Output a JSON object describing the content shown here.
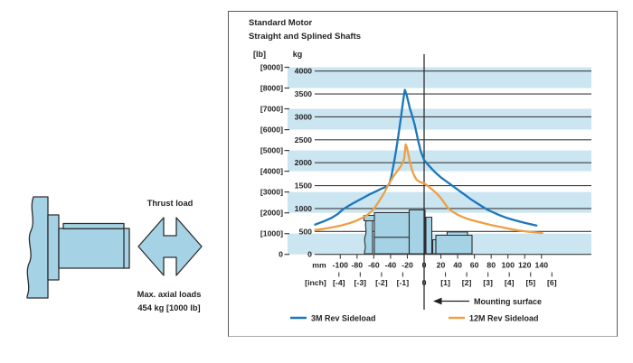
{
  "panel": {
    "title_line1": "Standard Motor",
    "title_line2": "Straight and Splined Shafts"
  },
  "illustration": {
    "thrust_label": "Thrust load",
    "axial_loads_line1": "Max. axial loads",
    "axial_loads_line2": "454 kg [1000 lb]"
  },
  "colors": {
    "stripe": "#cbe5f1",
    "fill_blue": "#a5d3e5",
    "outline": "#2d2e30",
    "grid": "#3e3f41",
    "text": "#231f20",
    "curve_3m": "#1b77bc",
    "curve_12m": "#eda045",
    "panel_border": "#58595b"
  },
  "chart_data": {
    "type": "line",
    "title": "Standard Motor - Straight and Splined Shafts",
    "x_axis": {
      "unit_primary": "mm",
      "unit_secondary": "[inch]",
      "mm_ticks": [
        -100,
        -80,
        -60,
        -40,
        -20,
        0,
        20,
        40,
        60,
        80,
        100,
        120,
        140
      ],
      "inch_ticks": [
        -4,
        -3,
        -2,
        -1,
        0,
        1,
        2,
        3,
        4,
        5,
        6
      ],
      "mm_range": [
        -130,
        141
      ]
    },
    "y_axis": {
      "unit_primary": "kg",
      "unit_secondary": "[lb]",
      "kg_ticks": [
        0,
        500,
        1000,
        1500,
        2000,
        2500,
        3000,
        3500,
        4000
      ],
      "lb_ticks": [
        0,
        1000,
        2000,
        3000,
        4000,
        5000,
        6000,
        7000,
        8000,
        9000
      ],
      "shaded_lb_bands": [
        [
          0,
          1000
        ],
        [
          2000,
          3000
        ],
        [
          4000,
          5000
        ],
        [
          6000,
          7000
        ],
        [
          8000,
          9000
        ]
      ],
      "kg_range": [
        0,
        4200
      ],
      "grid": true
    },
    "annotations": {
      "mounting_surface": "Mounting surface"
    },
    "legend": [
      {
        "label": "3M Rev Sideload",
        "color": "#1b77bc"
      },
      {
        "label": "12M Rev Sideload",
        "color": "#eda045"
      }
    ],
    "series": [
      {
        "name": "3M Rev Sideload",
        "color_key": "curve_3m",
        "points_mm_kg": [
          [
            -130,
            650
          ],
          [
            -120,
            720
          ],
          [
            -111,
            790
          ],
          [
            -103,
            880
          ],
          [
            -97,
            980
          ],
          [
            -90,
            1060
          ],
          [
            -82,
            1140
          ],
          [
            -74,
            1220
          ],
          [
            -66,
            1300
          ],
          [
            -58,
            1370
          ],
          [
            -51,
            1430
          ],
          [
            -46,
            1470
          ],
          [
            -42,
            1520
          ],
          [
            -39,
            1700
          ],
          [
            -37,
            1900
          ],
          [
            -35,
            2100
          ],
          [
            -33,
            2320
          ],
          [
            -31,
            2560
          ],
          [
            -29,
            2810
          ],
          [
            -27,
            3080
          ],
          [
            -25,
            3350
          ],
          [
            -23,
            3590
          ],
          [
            -21,
            3490
          ],
          [
            -19,
            3340
          ],
          [
            -17,
            3190
          ],
          [
            -15,
            3070
          ],
          [
            -13,
            2950
          ],
          [
            -11,
            2810
          ],
          [
            -9,
            2640
          ],
          [
            -7,
            2470
          ],
          [
            -4,
            2250
          ],
          [
            0,
            2060
          ],
          [
            5,
            1950
          ],
          [
            10,
            1850
          ],
          [
            15,
            1760
          ],
          [
            20,
            1680
          ],
          [
            26,
            1600
          ],
          [
            32,
            1520
          ],
          [
            38,
            1440
          ],
          [
            44,
            1360
          ],
          [
            50,
            1280
          ],
          [
            56,
            1200
          ],
          [
            62,
            1130
          ],
          [
            68,
            1060
          ],
          [
            75,
            980
          ],
          [
            82,
            920
          ],
          [
            90,
            855
          ],
          [
            98,
            800
          ],
          [
            106,
            755
          ],
          [
            114,
            715
          ],
          [
            122,
            680
          ],
          [
            128,
            655
          ],
          [
            134,
            630
          ]
        ]
      },
      {
        "name": "12M Rev Sideload",
        "color_key": "curve_12m",
        "points_mm_kg": [
          [
            -130,
            530
          ],
          [
            -119,
            560
          ],
          [
            -108,
            595
          ],
          [
            -98,
            635
          ],
          [
            -89,
            680
          ],
          [
            -81,
            735
          ],
          [
            -74,
            795
          ],
          [
            -67,
            870
          ],
          [
            -62,
            950
          ],
          [
            -58,
            1040
          ],
          [
            -54,
            1150
          ],
          [
            -50,
            1270
          ],
          [
            -46,
            1400
          ],
          [
            -43,
            1510
          ],
          [
            -40,
            1600
          ],
          [
            -37,
            1690
          ],
          [
            -34,
            1770
          ],
          [
            -31,
            1845
          ],
          [
            -28,
            1915
          ],
          [
            -25,
            2010
          ],
          [
            -23.5,
            2120
          ],
          [
            -22,
            2400
          ],
          [
            -20.5,
            2330
          ],
          [
            -19,
            2200
          ],
          [
            -17,
            2030
          ],
          [
            -15,
            1880
          ],
          [
            -13,
            1770
          ],
          [
            -11,
            1690
          ],
          [
            -9,
            1630
          ],
          [
            -6,
            1590
          ],
          [
            -3,
            1565
          ],
          [
            0,
            1550
          ],
          [
            4,
            1500
          ],
          [
            8,
            1440
          ],
          [
            12,
            1380
          ],
          [
            16,
            1310
          ],
          [
            20,
            1230
          ],
          [
            24,
            1130
          ],
          [
            29,
            1000
          ],
          [
            34,
            930
          ],
          [
            40,
            865
          ],
          [
            46,
            815
          ],
          [
            52,
            775
          ],
          [
            58,
            740
          ],
          [
            65,
            710
          ],
          [
            72,
            675
          ],
          [
            80,
            640
          ],
          [
            88,
            610
          ],
          [
            96,
            580
          ],
          [
            104,
            550
          ],
          [
            112,
            525
          ],
          [
            120,
            505
          ],
          [
            128,
            487
          ],
          [
            134,
            476
          ],
          [
            141,
            465
          ]
        ]
      }
    ]
  }
}
